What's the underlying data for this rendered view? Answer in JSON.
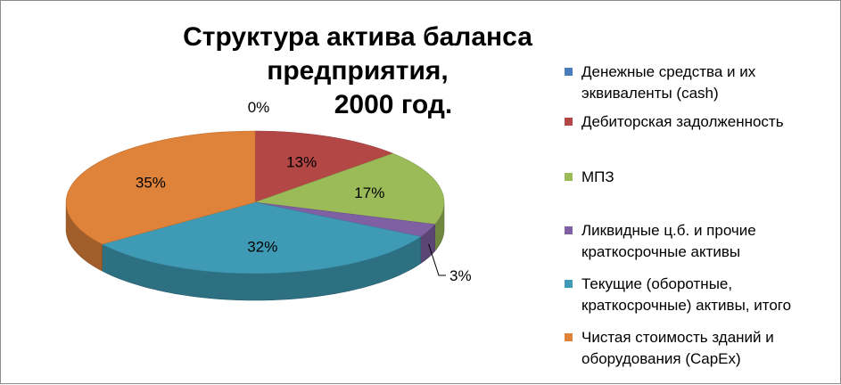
{
  "chart_data": {
    "type": "pie",
    "title_line1": "Структура актива баланса предприятия,",
    "title_line2": "2000 год.",
    "legend_position": "right",
    "series": [
      {
        "name": "Денежные средства и их эквиваленты (cash)",
        "value": 0,
        "label": "0%",
        "color": "#4a7ebb"
      },
      {
        "name": "Дебиторская задолженность",
        "value": 13,
        "label": "13%",
        "color": "#b34746"
      },
      {
        "name": "МПЗ",
        "value": 17,
        "label": "17%",
        "color": "#9bbb59"
      },
      {
        "name": "Ликвидные ц.б. и прочие краткосрочные активы",
        "value": 3,
        "label": "3%",
        "color": "#7f60a2"
      },
      {
        "name": "Текущие (оборотные, краткосрочные) активы, итого",
        "value": 32,
        "label": "32%",
        "color": "#3f9bb5"
      },
      {
        "name": "Чистая стоимость зданий и оборудования (CapEx)",
        "value": 35,
        "label": "35%",
        "color": "#e0833a"
      }
    ]
  },
  "legend": {
    "items": [
      {
        "line1": "Денежные средства и их",
        "line2": "эквиваленты (cash)"
      },
      {
        "line1": "Дебиторская задолженность",
        "line2": ""
      },
      {
        "line1": "МПЗ",
        "line2": ""
      },
      {
        "line1": "Ликвидные ц.б. и прочие",
        "line2": "краткосрочные активы"
      },
      {
        "line1": "Текущие (оборотные,",
        "line2": "краткосрочные) активы, итого"
      },
      {
        "line1": "Чистая стоимость зданий и",
        "line2": "оборудования (CapEx)"
      }
    ]
  }
}
